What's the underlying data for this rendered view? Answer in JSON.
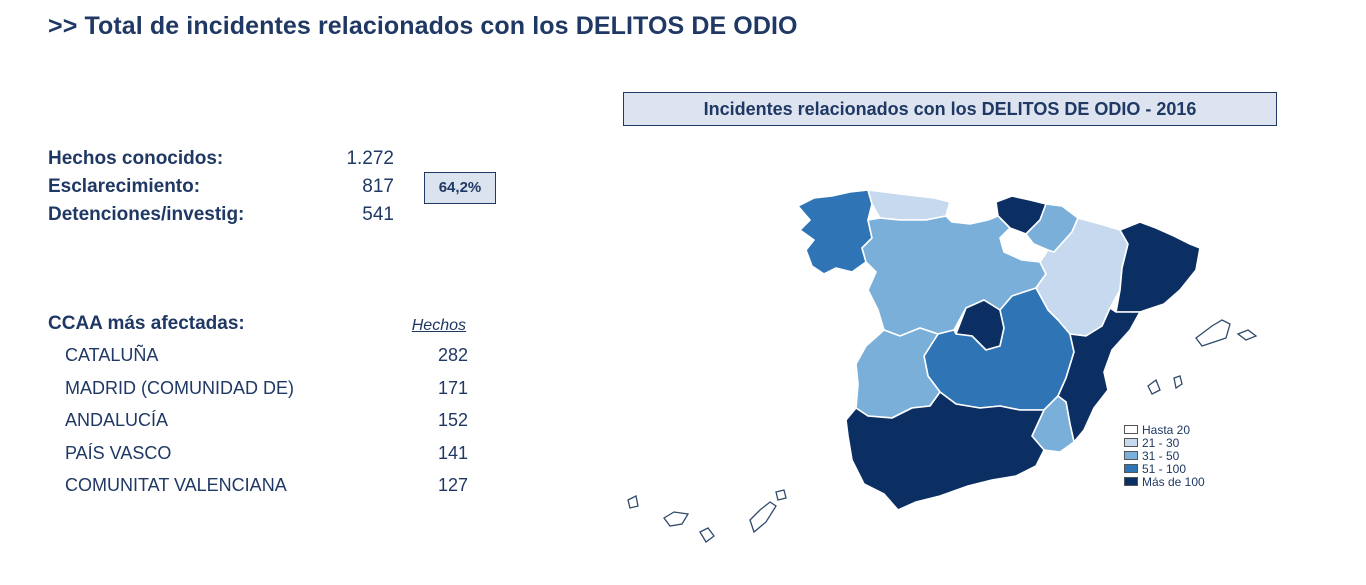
{
  "header": {
    "title": ">> Total de incidentes relacionados con los DELITOS DE ODIO"
  },
  "stats": {
    "known_label": "Hechos conocidos:",
    "known_value": "1.272",
    "clearance_label": "Esclarecimiento:",
    "clearance_value": "817",
    "clearance_pct": "64,2%",
    "detentions_label": "Detenciones/investig:",
    "detentions_value": "541"
  },
  "ccaa": {
    "title": "CCAA más afectadas:",
    "column": "Hechos",
    "rows": [
      {
        "name": "CATALUÑA",
        "value": "282"
      },
      {
        "name": "MADRID (COMUNIDAD DE)",
        "value": "171"
      },
      {
        "name": "ANDALUCÍA",
        "value": "152"
      },
      {
        "name": "PAÍS VASCO",
        "value": "141"
      },
      {
        "name": "COMUNITAT VALENCIANA",
        "value": "127"
      }
    ]
  },
  "map": {
    "title": "Incidentes relacionados con los DELITOS DE ODIO - 2016",
    "legend": [
      {
        "label": "Hasta 20",
        "color": "#ffffff"
      },
      {
        "label": "21 - 30",
        "color": "#c6d9ee"
      },
      {
        "label": "31 - 50",
        "color": "#7aafd9"
      },
      {
        "label": "51 - 100",
        "color": "#2f74b5"
      },
      {
        "label": "Más de 100",
        "color": "#0b2f63"
      }
    ]
  }
}
